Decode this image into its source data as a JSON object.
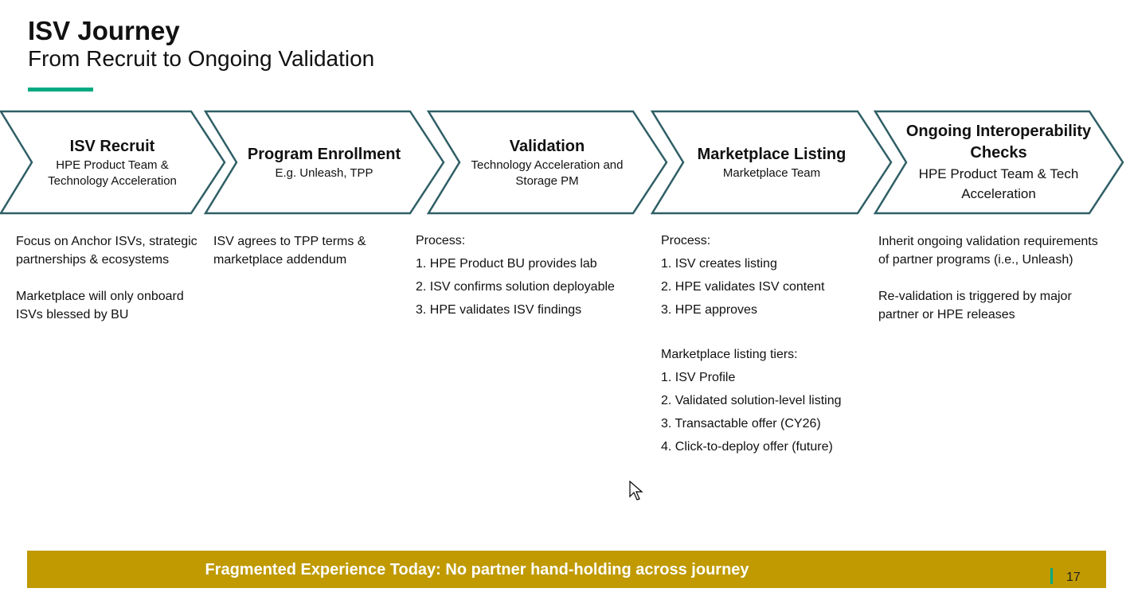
{
  "title": "ISV Journey",
  "subtitle": "From Recruit to Ongoing Validation",
  "colors": {
    "accent": "#01a982",
    "chevron_outline": "#2f5f66",
    "banner": "#c09a00"
  },
  "stages": [
    {
      "heading": "ISV Recruit",
      "sub": "HPE Product Team & Technology Acceleration"
    },
    {
      "heading": "Program Enrollment",
      "sub": "E.g. Unleash, TPP"
    },
    {
      "heading": "Validation",
      "sub": "Technology Acceleration and Storage PM"
    },
    {
      "heading": "Marketplace Listing",
      "sub": "Marketplace Team"
    },
    {
      "heading": "Ongoing Interoperability Checks",
      "sub": "HPE Product Team & Tech Acceleration"
    }
  ],
  "columns": {
    "recruit": {
      "p1": "Focus on Anchor ISVs, strategic partnerships & ecosystems",
      "p2": "Marketplace will only onboard ISVs blessed by BU"
    },
    "enrollment": {
      "p1": "ISV agrees to TPP terms & marketplace addendum"
    },
    "validation": {
      "label": "Process:",
      "items": [
        "1.  HPE Product BU provides lab",
        "2.  ISV confirms solution deployable",
        "3.  HPE validates ISV findings"
      ]
    },
    "listing": {
      "label": "Process:",
      "items": [
        "1.  ISV creates listing",
        "2.  HPE validates ISV content",
        "3.  HPE approves"
      ],
      "tiers_label": "Marketplace listing tiers:",
      "tiers": [
        "1.  ISV Profile",
        "2.  Validated solution-level listing",
        "3.  Transactable offer (CY26)",
        "4.  Click-to-deploy offer (future)"
      ]
    },
    "ongoing": {
      "p1": "Inherit ongoing validation requirements of partner programs (i.e., Unleash)",
      "p2": "Re-validation is triggered by major partner or HPE releases"
    }
  },
  "banner": "Fragmented Experience Today: No partner hand-holding across journey",
  "page_number": "17"
}
